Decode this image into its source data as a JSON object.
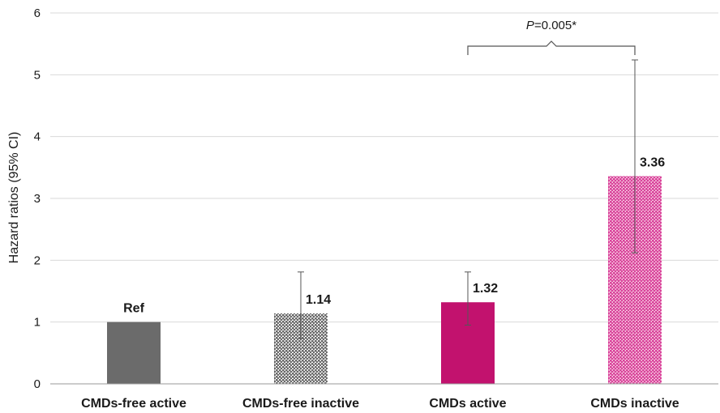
{
  "chart_data": {
    "type": "bar",
    "title": "",
    "xlabel": "",
    "ylabel": "Hazard ratios (95% CI)",
    "ylim": [
      0,
      6
    ],
    "yticks": [
      0,
      1,
      2,
      3,
      4,
      5,
      6
    ],
    "grid": true,
    "categories": [
      "CMDs-free active",
      "CMDs-free inactive",
      "CMDs active",
      "CMDs inactive"
    ],
    "values": [
      1.0,
      1.14,
      1.32,
      3.36
    ],
    "ci_lower": [
      1.0,
      0.73,
      0.95,
      2.12
    ],
    "ci_upper": [
      1.0,
      1.81,
      1.81,
      5.24
    ],
    "value_labels": [
      "Ref",
      "1.14",
      "1.32",
      "3.36"
    ],
    "bar_colors": [
      "#6b6b6b",
      "#6b6b6b",
      "#c2126e",
      "#d9449b"
    ],
    "bar_patterns": [
      "solid",
      "dotted",
      "solid",
      "dotted"
    ],
    "annotation": {
      "p_symbol": "P",
      "p_rest": "=0.005*",
      "between": [
        "CMDs active",
        "CMDs inactive"
      ]
    }
  }
}
